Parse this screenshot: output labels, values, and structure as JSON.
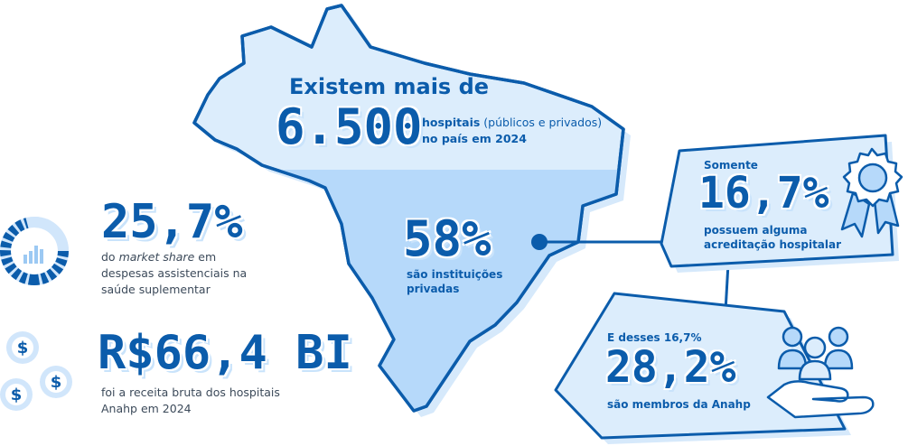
{
  "map": {
    "intro": "Existem mais de",
    "hospitals_value": "6.500",
    "hospitals_label_bold": "hospitais",
    "hospitals_label_rest": " (públicos e privados)",
    "hospitals_label_line2": "no país em 2024",
    "private_value": "58%",
    "private_label_line1": "são instituições",
    "private_label_line2": "privadas"
  },
  "accreditation": {
    "prefix": "Somente",
    "value": "16,7%",
    "label_line1": "possuem alguma",
    "label_line2": "acreditação hospitalar",
    "icon": "award-ribbon-icon"
  },
  "anahp_members": {
    "prefix": "E desses 16,7%",
    "value": "28,2%",
    "label": "são membros da Anahp",
    "icon": "people-hand-icon"
  },
  "market_share": {
    "value": "25,7%",
    "label_pre": "do ",
    "label_italic": "market share",
    "label_post": " em",
    "label_line2": "despesas assistenciais na",
    "label_line3": "saúde suplementar",
    "icon": "donut-chart-icon"
  },
  "revenue": {
    "value": "R$66,4 BI",
    "label_line1": "foi a receita bruta dos hospitais",
    "label_line2": "Anahp em 2024",
    "icon": "coins-icon"
  },
  "colors": {
    "accent": "#0b5cab",
    "light": "#d9ebfb",
    "mid": "#b8dafa",
    "text": "#3c4a5a"
  }
}
